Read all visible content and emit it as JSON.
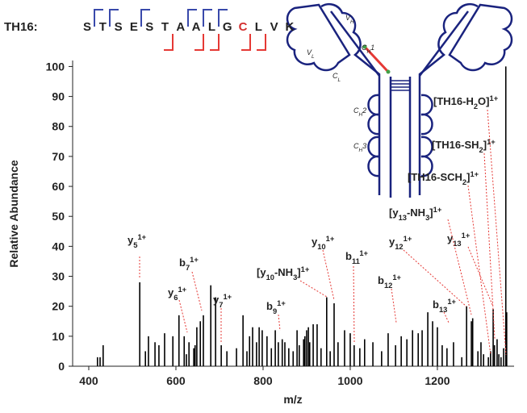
{
  "chart_data": {
    "type": "stem",
    "peptide_label": "TH16:",
    "sequence": [
      "S",
      "T",
      "S",
      "E",
      "S",
      "T",
      "A",
      "A",
      "L",
      "G",
      "C",
      "L",
      "V",
      "K"
    ],
    "sequence_colors": [
      "#222",
      "#222",
      "#222",
      "#222",
      "#222",
      "#222",
      "#222",
      "#222",
      "#222",
      "#222",
      "#d32f2f",
      "#222",
      "#222",
      "#222"
    ],
    "xlabel": "m/z",
    "ylabel": "Relative Abundance",
    "xlim": [
      363,
      1376
    ],
    "ylim": [
      0,
      102
    ],
    "xticks": [
      400,
      600,
      800,
      1000,
      1200
    ],
    "yticks": [
      0,
      10,
      20,
      30,
      40,
      50,
      60,
      70,
      80,
      90,
      100
    ],
    "color": "#000000",
    "x": [
      420,
      426,
      433,
      517,
      530,
      537,
      552,
      561,
      574,
      593,
      607,
      619,
      624,
      630,
      641,
      644,
      648,
      656,
      663,
      680,
      691,
      704,
      717,
      739,
      754,
      763,
      769,
      776,
      785,
      791,
      798,
      809,
      819,
      828,
      835,
      844,
      850,
      859,
      869,
      878,
      883,
      893,
      896,
      900,
      904,
      907,
      915,
      924,
      933,
      946,
      954,
      963,
      972,
      987,
      1000,
      1009,
      1022,
      1033,
      1052,
      1072,
      1087,
      1104,
      1117,
      1130,
      1143,
      1156,
      1165,
      1178,
      1189,
      1200,
      1211,
      1222,
      1237,
      1256,
      1267,
      1278,
      1281,
      1293,
      1300,
      1306,
      1317,
      1322,
      1328,
      1331,
      1337,
      1341,
      1346,
      1352,
      1357,
      1359
    ],
    "values": [
      3,
      3,
      7,
      28,
      5,
      10,
      8,
      7,
      11,
      10,
      17,
      10,
      4,
      8,
      6,
      7,
      13,
      15,
      17,
      27,
      23,
      7,
      5,
      6,
      17,
      5,
      10,
      13,
      8,
      13,
      12,
      10,
      6,
      12,
      8,
      9,
      8,
      6,
      5,
      12,
      7,
      9,
      10,
      12,
      13,
      8,
      14,
      14,
      6,
      23,
      5,
      21,
      8,
      12,
      11,
      7,
      6,
      9,
      8,
      5,
      11,
      7,
      10,
      9,
      12,
      11,
      12,
      18,
      15,
      13,
      7,
      6,
      8,
      3,
      20,
      15,
      16,
      5,
      8,
      4,
      3,
      5,
      19,
      7,
      9,
      4,
      3,
      6,
      100,
      18
    ],
    "annotations": [
      {
        "parts": [
          {
            "text": "y"
          },
          {
            "sub": "5"
          },
          {
            "sup": "1+"
          }
        ]
      },
      {
        "parts": [
          {
            "text": "b"
          },
          {
            "sub": "7"
          },
          {
            "sup": "1+"
          }
        ]
      },
      {
        "parts": [
          {
            "text": "y"
          },
          {
            "sub": "6"
          },
          {
            "sup": "1+"
          }
        ]
      },
      {
        "parts": [
          {
            "text": "y"
          },
          {
            "sub": "7"
          },
          {
            "sup": "1+"
          }
        ]
      },
      {
        "parts": [
          {
            "text": "[y"
          },
          {
            "sub": "10"
          },
          {
            "text": "-NH"
          },
          {
            "sub": "3"
          },
          {
            "text": "]"
          },
          {
            "sup": "1+"
          }
        ]
      },
      {
        "parts": [
          {
            "text": "y"
          },
          {
            "sub": "10"
          },
          {
            "sup": "1+"
          }
        ]
      },
      {
        "parts": [
          {
            "text": "b"
          },
          {
            "sub": "11"
          },
          {
            "sup": "1+"
          }
        ]
      },
      {
        "parts": [
          {
            "text": "b"
          },
          {
            "sub": "9"
          },
          {
            "sup": "1+"
          }
        ]
      },
      {
        "parts": [
          {
            "text": "y"
          },
          {
            "sub": "12"
          },
          {
            "sup": "1+"
          }
        ]
      },
      {
        "parts": [
          {
            "text": "b"
          },
          {
            "sub": "12"
          },
          {
            "sup": "1+"
          }
        ]
      },
      {
        "parts": [
          {
            "text": "b"
          },
          {
            "sub": "13"
          },
          {
            "sup": "1+"
          }
        ]
      },
      {
        "parts": [
          {
            "text": "y"
          },
          {
            "sub": "13"
          },
          {
            "sup": "1+"
          }
        ]
      },
      {
        "parts": [
          {
            "text": "[y"
          },
          {
            "sub": "13"
          },
          {
            "text": "-NH"
          },
          {
            "sub": "3"
          },
          {
            "text": "]"
          },
          {
            "sup": "1+"
          }
        ]
      },
      {
        "parts": [
          {
            "text": "[TH16-SCH"
          },
          {
            "sub": "2"
          },
          {
            "text": "]"
          },
          {
            "sup": "1+"
          }
        ]
      },
      {
        "parts": [
          {
            "text": "[TH16-SH"
          },
          {
            "sub": "2"
          },
          {
            "text": "]"
          },
          {
            "sup": "1+"
          }
        ]
      },
      {
        "parts": [
          {
            "text": "[TH16-H"
          },
          {
            "sub": "2"
          },
          {
            "text": "O]"
          },
          {
            "sup": "1+"
          }
        ]
      }
    ],
    "domains": [
      {
        "parts": [
          {
            "text": "V"
          },
          {
            "sub": "H"
          }
        ]
      },
      {
        "parts": [
          {
            "text": "V"
          },
          {
            "sub": "L"
          }
        ]
      },
      {
        "parts": [
          {
            "text": "C"
          },
          {
            "sub": "H"
          },
          {
            "text": "1"
          }
        ]
      },
      {
        "parts": [
          {
            "text": "C"
          },
          {
            "sub": "L"
          }
        ]
      },
      {
        "parts": [
          {
            "text": "C"
          },
          {
            "sub": "H"
          },
          {
            "text": "2"
          }
        ]
      },
      {
        "parts": [
          {
            "text": "C"
          },
          {
            "sub": "H"
          },
          {
            "text": "3"
          }
        ]
      }
    ]
  }
}
